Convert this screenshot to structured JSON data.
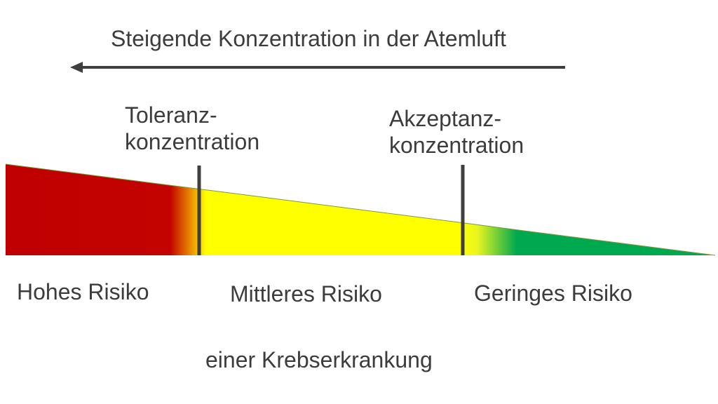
{
  "arrow_title": "Steigende Konzentration in der Atemluft",
  "thresholds": {
    "tolerance": [
      "Toleranz-",
      "konzentration"
    ],
    "acceptance": [
      "Akzeptanz-",
      "konzentration"
    ]
  },
  "risk_levels": {
    "high": "Hohes Risiko",
    "medium": "Mittleres Risiko",
    "low": "Geringes Risiko"
  },
  "caption": "einer Krebserkrankung",
  "colors": {
    "high": "#c00000",
    "medium": "#ffff00",
    "low": "#00a850",
    "arrow": "#3f3f3f",
    "marker": "#3f3f3f"
  }
}
